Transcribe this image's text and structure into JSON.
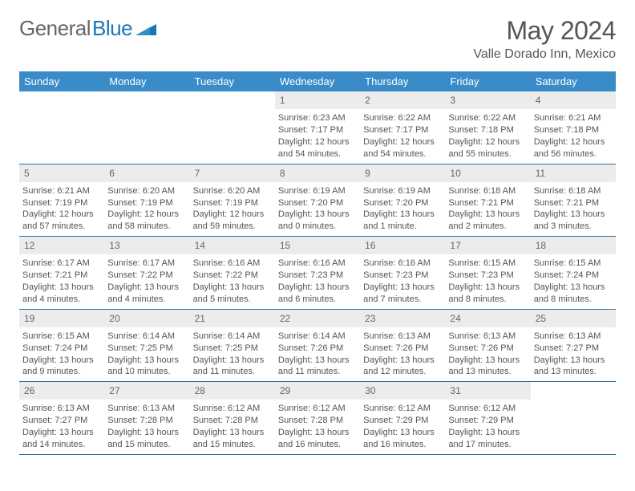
{
  "logo": {
    "gray": "General",
    "blue": "Blue"
  },
  "title": "May 2024",
  "subtitle": "Valle Dorado Inn, Mexico",
  "colors": {
    "header_bg": "#3a8cc9",
    "header_text": "#ffffff",
    "daynum_bg": "#ececec",
    "border": "#2b6fa3",
    "logo_gray": "#666666",
    "logo_blue": "#1976b8"
  },
  "weekdays": [
    "Sunday",
    "Monday",
    "Tuesday",
    "Wednesday",
    "Thursday",
    "Friday",
    "Saturday"
  ],
  "weeks": [
    [
      null,
      null,
      null,
      {
        "n": "1",
        "sr": "Sunrise: 6:23 AM",
        "ss": "Sunset: 7:17 PM",
        "dl": "Daylight: 12 hours and 54 minutes."
      },
      {
        "n": "2",
        "sr": "Sunrise: 6:22 AM",
        "ss": "Sunset: 7:17 PM",
        "dl": "Daylight: 12 hours and 54 minutes."
      },
      {
        "n": "3",
        "sr": "Sunrise: 6:22 AM",
        "ss": "Sunset: 7:18 PM",
        "dl": "Daylight: 12 hours and 55 minutes."
      },
      {
        "n": "4",
        "sr": "Sunrise: 6:21 AM",
        "ss": "Sunset: 7:18 PM",
        "dl": "Daylight: 12 hours and 56 minutes."
      }
    ],
    [
      {
        "n": "5",
        "sr": "Sunrise: 6:21 AM",
        "ss": "Sunset: 7:19 PM",
        "dl": "Daylight: 12 hours and 57 minutes."
      },
      {
        "n": "6",
        "sr": "Sunrise: 6:20 AM",
        "ss": "Sunset: 7:19 PM",
        "dl": "Daylight: 12 hours and 58 minutes."
      },
      {
        "n": "7",
        "sr": "Sunrise: 6:20 AM",
        "ss": "Sunset: 7:19 PM",
        "dl": "Daylight: 12 hours and 59 minutes."
      },
      {
        "n": "8",
        "sr": "Sunrise: 6:19 AM",
        "ss": "Sunset: 7:20 PM",
        "dl": "Daylight: 13 hours and 0 minutes."
      },
      {
        "n": "9",
        "sr": "Sunrise: 6:19 AM",
        "ss": "Sunset: 7:20 PM",
        "dl": "Daylight: 13 hours and 1 minute."
      },
      {
        "n": "10",
        "sr": "Sunrise: 6:18 AM",
        "ss": "Sunset: 7:21 PM",
        "dl": "Daylight: 13 hours and 2 minutes."
      },
      {
        "n": "11",
        "sr": "Sunrise: 6:18 AM",
        "ss": "Sunset: 7:21 PM",
        "dl": "Daylight: 13 hours and 3 minutes."
      }
    ],
    [
      {
        "n": "12",
        "sr": "Sunrise: 6:17 AM",
        "ss": "Sunset: 7:21 PM",
        "dl": "Daylight: 13 hours and 4 minutes."
      },
      {
        "n": "13",
        "sr": "Sunrise: 6:17 AM",
        "ss": "Sunset: 7:22 PM",
        "dl": "Daylight: 13 hours and 4 minutes."
      },
      {
        "n": "14",
        "sr": "Sunrise: 6:16 AM",
        "ss": "Sunset: 7:22 PM",
        "dl": "Daylight: 13 hours and 5 minutes."
      },
      {
        "n": "15",
        "sr": "Sunrise: 6:16 AM",
        "ss": "Sunset: 7:23 PM",
        "dl": "Daylight: 13 hours and 6 minutes."
      },
      {
        "n": "16",
        "sr": "Sunrise: 6:16 AM",
        "ss": "Sunset: 7:23 PM",
        "dl": "Daylight: 13 hours and 7 minutes."
      },
      {
        "n": "17",
        "sr": "Sunrise: 6:15 AM",
        "ss": "Sunset: 7:23 PM",
        "dl": "Daylight: 13 hours and 8 minutes."
      },
      {
        "n": "18",
        "sr": "Sunrise: 6:15 AM",
        "ss": "Sunset: 7:24 PM",
        "dl": "Daylight: 13 hours and 8 minutes."
      }
    ],
    [
      {
        "n": "19",
        "sr": "Sunrise: 6:15 AM",
        "ss": "Sunset: 7:24 PM",
        "dl": "Daylight: 13 hours and 9 minutes."
      },
      {
        "n": "20",
        "sr": "Sunrise: 6:14 AM",
        "ss": "Sunset: 7:25 PM",
        "dl": "Daylight: 13 hours and 10 minutes."
      },
      {
        "n": "21",
        "sr": "Sunrise: 6:14 AM",
        "ss": "Sunset: 7:25 PM",
        "dl": "Daylight: 13 hours and 11 minutes."
      },
      {
        "n": "22",
        "sr": "Sunrise: 6:14 AM",
        "ss": "Sunset: 7:26 PM",
        "dl": "Daylight: 13 hours and 11 minutes."
      },
      {
        "n": "23",
        "sr": "Sunrise: 6:13 AM",
        "ss": "Sunset: 7:26 PM",
        "dl": "Daylight: 13 hours and 12 minutes."
      },
      {
        "n": "24",
        "sr": "Sunrise: 6:13 AM",
        "ss": "Sunset: 7:26 PM",
        "dl": "Daylight: 13 hours and 13 minutes."
      },
      {
        "n": "25",
        "sr": "Sunrise: 6:13 AM",
        "ss": "Sunset: 7:27 PM",
        "dl": "Daylight: 13 hours and 13 minutes."
      }
    ],
    [
      {
        "n": "26",
        "sr": "Sunrise: 6:13 AM",
        "ss": "Sunset: 7:27 PM",
        "dl": "Daylight: 13 hours and 14 minutes."
      },
      {
        "n": "27",
        "sr": "Sunrise: 6:13 AM",
        "ss": "Sunset: 7:28 PM",
        "dl": "Daylight: 13 hours and 15 minutes."
      },
      {
        "n": "28",
        "sr": "Sunrise: 6:12 AM",
        "ss": "Sunset: 7:28 PM",
        "dl": "Daylight: 13 hours and 15 minutes."
      },
      {
        "n": "29",
        "sr": "Sunrise: 6:12 AM",
        "ss": "Sunset: 7:28 PM",
        "dl": "Daylight: 13 hours and 16 minutes."
      },
      {
        "n": "30",
        "sr": "Sunrise: 6:12 AM",
        "ss": "Sunset: 7:29 PM",
        "dl": "Daylight: 13 hours and 16 minutes."
      },
      {
        "n": "31",
        "sr": "Sunrise: 6:12 AM",
        "ss": "Sunset: 7:29 PM",
        "dl": "Daylight: 13 hours and 17 minutes."
      },
      null
    ]
  ]
}
